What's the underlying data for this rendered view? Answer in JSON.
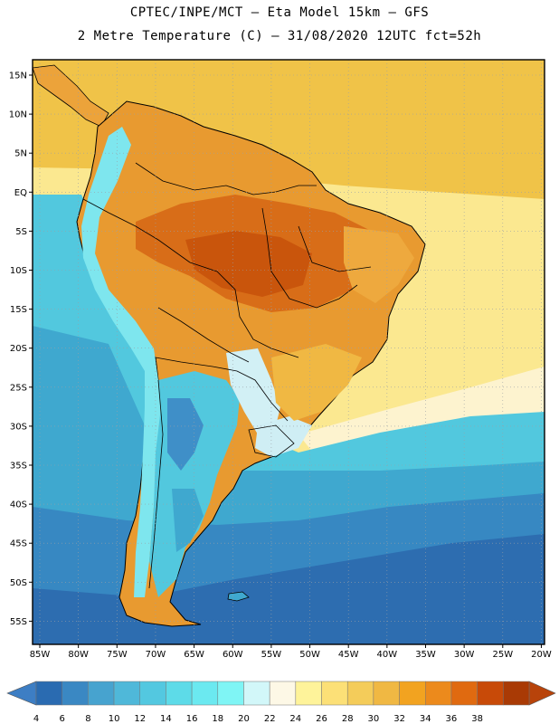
{
  "header": {
    "line1": "CPTEC/INPE/MCT –  Eta Model 15km – GFS",
    "line2": "2 Metre Temperature (C) – 31/08/2020 12UTC fct=52h"
  },
  "map": {
    "region": "South America",
    "lat_labels": [
      "15N",
      "10N",
      "5N",
      "EQ",
      "5S",
      "10S",
      "15S",
      "20S",
      "25S",
      "30S",
      "35S",
      "40S",
      "45S",
      "50S",
      "55S"
    ],
    "lon_labels": [
      "85W",
      "80W",
      "75W",
      "70W",
      "65W",
      "60W",
      "55W",
      "50W",
      "45W",
      "40W",
      "35W",
      "30W",
      "25W",
      "20W"
    ]
  },
  "colorbar": {
    "labels": [
      "4",
      "6",
      "8",
      "10",
      "12",
      "14",
      "16",
      "18",
      "20",
      "22",
      "24",
      "26",
      "28",
      "30",
      "32",
      "34",
      "36",
      "38"
    ],
    "colors": [
      "#2a6bb1",
      "#3a88c3",
      "#47a3cf",
      "#4fb8d9",
      "#53c8e0",
      "#5ddbe8",
      "#6be9f0",
      "#7ff5f5",
      "#d2f7f9",
      "#fdf8e6",
      "#fef39a",
      "#fce077",
      "#f4cc5a",
      "#f0b843",
      "#f2a320",
      "#ec8a1c",
      "#e06a10",
      "#c84a08",
      "#a93a05"
    ],
    "low_arrow_color": "#3d7ec4",
    "high_arrow_color": "#b8430a"
  }
}
